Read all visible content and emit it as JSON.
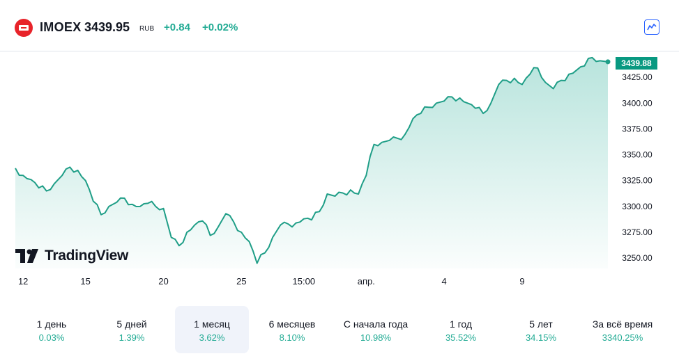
{
  "header": {
    "logo_icon": "moex-logo-icon",
    "symbol": "IMOEX",
    "price": "3439.95",
    "currency": "RUB",
    "change": "+0.84",
    "change_pct": "+0.02%",
    "chart_button_icon": "chart-line-icon"
  },
  "colors": {
    "accent_green": "#22ab94",
    "line": "#1f9e87",
    "last_label_bg": "#089981",
    "active_tab_bg": "#f0f3fa",
    "button_blue": "#2962ff"
  },
  "watermark": {
    "icon": "tradingview-logo-icon",
    "text": "TradingView"
  },
  "chart_data": {
    "type": "area",
    "last_value_label": "3439.88",
    "ylim": [
      3240,
      3450
    ],
    "yticks": [
      "3250.00",
      "3275.00",
      "3300.00",
      "3325.00",
      "3350.00",
      "3375.00",
      "3400.00",
      "3425.00"
    ],
    "ytick_values": [
      3250,
      3275,
      3300,
      3325,
      3350,
      3375,
      3400,
      3425
    ],
    "xticks": [
      "12",
      "15",
      "20",
      "25",
      "15:00",
      "апр.",
      "4",
      "9"
    ],
    "xtick_positions": [
      0.5,
      4.5,
      9.5,
      14.5,
      18.5,
      22.5,
      27.5,
      32.5
    ],
    "x_max": 38,
    "x": [
      0,
      0.5,
      1,
      1.5,
      2,
      2.5,
      3,
      3.5,
      4,
      4.5,
      5,
      5.5,
      6,
      6.5,
      7,
      7.5,
      8,
      8.5,
      9,
      9.5,
      10,
      10.5,
      11,
      11.5,
      12,
      12.5,
      13,
      13.5,
      14,
      14.5,
      15,
      15.5,
      16,
      16.5,
      17,
      17.5,
      18,
      18.5,
      19,
      19.5,
      20,
      20.5,
      21,
      21.5,
      22,
      22.5,
      23,
      23.5,
      24,
      24.5,
      25,
      25.5,
      26,
      26.5,
      27,
      27.5,
      28,
      28.5,
      29,
      29.5,
      30,
      30.5,
      31,
      31.5,
      32,
      32.5,
      33,
      33.5,
      34,
      34.5,
      35,
      35.5,
      36,
      36.5,
      37,
      37.5,
      38
    ],
    "y": [
      3337,
      3330,
      3326,
      3318,
      3315,
      3322,
      3330,
      3338,
      3335,
      3325,
      3305,
      3292,
      3300,
      3304,
      3308,
      3302,
      3300,
      3303,
      3300,
      3298,
      3270,
      3262,
      3275,
      3282,
      3286,
      3272,
      3280,
      3293,
      3285,
      3275,
      3266,
      3245,
      3255,
      3270,
      3282,
      3283,
      3284,
      3288,
      3287,
      3295,
      3312,
      3310,
      3313,
      3316,
      3312,
      3330,
      3360,
      3362,
      3364,
      3366,
      3370,
      3385,
      3390,
      3396,
      3400,
      3402,
      3406,
      3405,
      3400,
      3395,
      3390,
      3400,
      3418,
      3422,
      3424,
      3418,
      3428,
      3434,
      3420,
      3414,
      3422,
      3428,
      3432,
      3436,
      3444,
      3441,
      3440
    ],
    "series_name": "IMOEX"
  },
  "periods": [
    {
      "label": "1 день",
      "value": "0.03%"
    },
    {
      "label": "5 дней",
      "value": "1.39%"
    },
    {
      "label": "1 месяц",
      "value": "3.62%",
      "active": true
    },
    {
      "label": "6 месяцев",
      "value": "8.10%"
    },
    {
      "label": "С начала года",
      "value": "10.98%"
    },
    {
      "label": "1 год",
      "value": "35.52%"
    },
    {
      "label": "5 лет",
      "value": "34.15%"
    },
    {
      "label": "За всё время",
      "value": "3340.25%"
    }
  ]
}
